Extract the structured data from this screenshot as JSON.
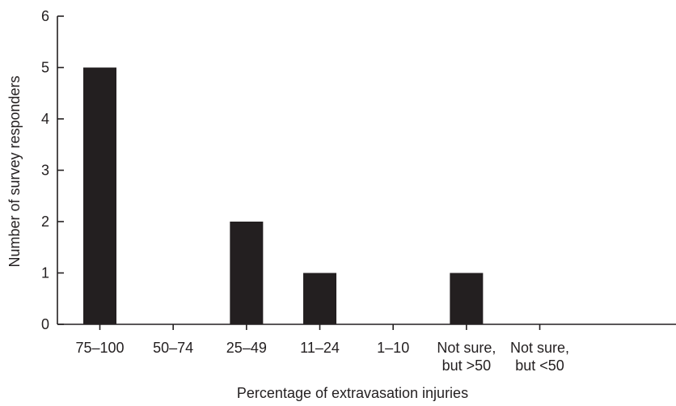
{
  "chart_data": {
    "type": "bar",
    "categories": [
      [
        "75–100"
      ],
      [
        "50–74"
      ],
      [
        "25–49"
      ],
      [
        "11–24"
      ],
      [
        "1–10"
      ],
      [
        "Not sure,",
        "but >50"
      ],
      [
        "Not sure,",
        "but <50"
      ]
    ],
    "values": [
      5,
      0,
      2,
      1,
      0,
      1,
      0
    ],
    "title": "",
    "xlabel": "Percentage of extravasation injuries",
    "ylabel": "Number of survey responders",
    "ylim": [
      0,
      6
    ],
    "yticks": [
      0,
      1,
      2,
      3,
      4,
      5,
      6
    ],
    "grid": false,
    "legend": "none",
    "colors": {
      "bar": "#231f20",
      "axis": "#231f20",
      "text": "#231f20"
    }
  }
}
